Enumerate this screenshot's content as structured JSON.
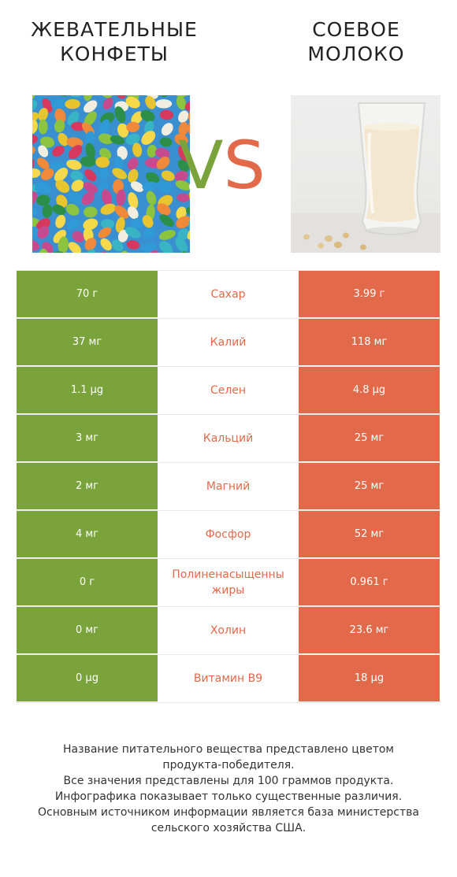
{
  "header": {
    "left_title_line1": "ЖЕВАТЕЛЬНЫЕ",
    "left_title_line2": "КОНФЕТЫ",
    "right_title_line1": "СОЕВОЕ",
    "right_title_line2": "МОЛОКО",
    "vs_v": "V",
    "vs_s": "S"
  },
  "colors": {
    "left_winner": "#7aa33b",
    "right_winner": "#e2694a"
  },
  "rows": [
    {
      "left": "70 г",
      "nutrient": "Сахар",
      "right": "3.99 г"
    },
    {
      "left": "37 мг",
      "nutrient": "Калий",
      "right": "118 мг"
    },
    {
      "left": "1.1 µg",
      "nutrient": "Селен",
      "right": "4.8 µg"
    },
    {
      "left": "3 мг",
      "nutrient": "Кальций",
      "right": "25 мг"
    },
    {
      "left": "2 мг",
      "nutrient": "Магний",
      "right": "25 мг"
    },
    {
      "left": "4 мг",
      "nutrient": "Фосфор",
      "right": "52 мг"
    },
    {
      "left": "0 г",
      "nutrient": "Полиненасыщенны жиры",
      "right": "0.961 г"
    },
    {
      "left": "0 мг",
      "nutrient": "Холин",
      "right": "23.6 мг"
    },
    {
      "left": "0 µg",
      "nutrient": "Витамин B9",
      "right": "18 µg"
    }
  ],
  "footer": {
    "line1": "Название питательного вещества представлено цветом",
    "line2": "продукта-победителя.",
    "line3": "Все значения представлены для 100 граммов продукта.",
    "line4": "Инфографика показывает только существенные различия.",
    "line5": "Основным источником информации является база министерства",
    "line6": "сельского хозяйства США."
  }
}
